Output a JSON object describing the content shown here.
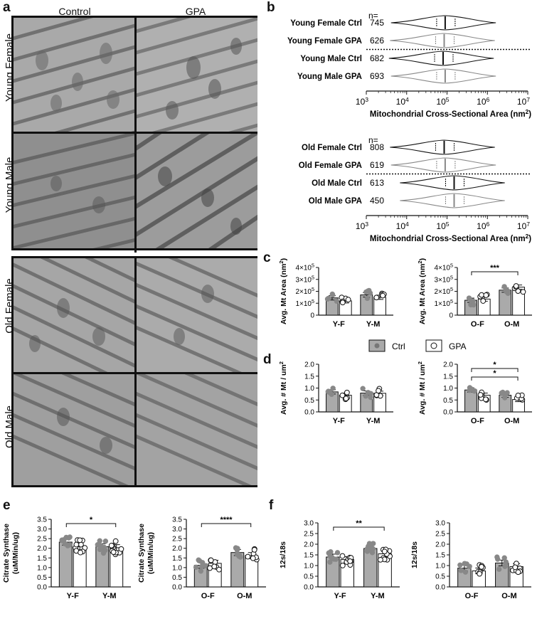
{
  "panel_labels": {
    "a": "a",
    "b": "b",
    "c": "c",
    "d": "d",
    "e": "e",
    "f": "f"
  },
  "panel_a": {
    "columns": [
      "Control",
      "GPA"
    ],
    "rows": [
      "Young Female",
      "Young Male",
      "Old Female",
      "Old Male"
    ]
  },
  "legend": {
    "ctrl": "Ctrl",
    "gpa": "GPA"
  },
  "chart_data": [
    {
      "id": "b-young",
      "type": "violin",
      "n_label": "n=",
      "rows": [
        {
          "label": "Young Female Ctrl",
          "n": "745",
          "color": "#111111"
        },
        {
          "label": "Young Female GPA",
          "n": "626",
          "color": "#888888"
        },
        {
          "label": "Young Male Ctrl",
          "n": "682",
          "color": "#111111"
        },
        {
          "label": "Young Male GPA",
          "n": "693",
          "color": "#888888"
        }
      ],
      "xscale": "log",
      "xlim": [
        1000,
        10000000
      ],
      "ticks": [
        {
          "base": "10",
          "exp": "3"
        },
        {
          "base": "10",
          "exp": "4"
        },
        {
          "base": "10",
          "exp": "5"
        },
        {
          "base": "10",
          "exp": "6"
        },
        {
          "base": "10",
          "exp": "7"
        }
      ],
      "xlabel": "Mitochondrial Cross-Sectional Area (nm",
      "xlabel_sup": "2",
      "xlabel_end": ")"
    },
    {
      "id": "b-old",
      "type": "violin",
      "n_label": "n=",
      "rows": [
        {
          "label": "Old Female Ctrl",
          "n": "808",
          "color": "#111111"
        },
        {
          "label": "Old Female GPA",
          "n": "619",
          "color": "#888888"
        },
        {
          "label": "Old Male Ctrl",
          "n": "613",
          "color": "#111111"
        },
        {
          "label": "Old Male GPA",
          "n": "450",
          "color": "#888888"
        }
      ],
      "xscale": "log",
      "xlim": [
        1000,
        10000000
      ],
      "ticks": [
        {
          "base": "10",
          "exp": "3"
        },
        {
          "base": "10",
          "exp": "4"
        },
        {
          "base": "10",
          "exp": "5"
        },
        {
          "base": "10",
          "exp": "6"
        },
        {
          "base": "10",
          "exp": "7"
        }
      ],
      "xlabel": "Mitochondrial Cross-Sectional Area (nm",
      "xlabel_sup": "2",
      "xlabel_end": ")"
    },
    {
      "id": "c-young",
      "type": "bar",
      "ylabel": "Avg. Mt Area (nm",
      "ylabel_sup": "2",
      "ylabel_end": ")",
      "ylim": [
        0,
        400000
      ],
      "yticks": [
        {
          "t": "0"
        },
        {
          "t": "1×10",
          "sup": "5"
        },
        {
          "t": "2×10",
          "sup": "5"
        },
        {
          "t": "3×10",
          "sup": "5"
        },
        {
          "t": "4×10",
          "sup": "5"
        }
      ],
      "categories": [
        "Y-F",
        "Y-M"
      ],
      "series": [
        {
          "name": "Ctrl",
          "values": [
            145000,
            170000
          ]
        },
        {
          "name": "GPA",
          "values": [
            120000,
            150000
          ]
        }
      ],
      "sig": []
    },
    {
      "id": "c-old",
      "type": "bar",
      "ylabel": "Avg. Mt Area (nm",
      "ylabel_sup": "2",
      "ylabel_end": ")",
      "ylim": [
        0,
        400000
      ],
      "yticks": [
        {
          "t": "0"
        },
        {
          "t": "1×10",
          "sup": "5"
        },
        {
          "t": "2×10",
          "sup": "5"
        },
        {
          "t": "3×10",
          "sup": "5"
        },
        {
          "t": "4×10",
          "sup": "5"
        }
      ],
      "categories": [
        "O-F",
        "O-M"
      ],
      "series": [
        {
          "name": "Ctrl",
          "values": [
            125000,
            210000
          ]
        },
        {
          "name": "GPA",
          "values": [
            135000,
            235000
          ]
        }
      ],
      "sig": [
        {
          "label": "***"
        }
      ]
    },
    {
      "id": "d-young",
      "type": "bar",
      "ylabel": "Avg. # Mt / um",
      "ylabel_sup": "2",
      "ylabel_end": "",
      "ylim": [
        0,
        2.0
      ],
      "yticks": [
        {
          "t": "0.0"
        },
        {
          "t": "0.5"
        },
        {
          "t": "1.0"
        },
        {
          "t": "1.5"
        },
        {
          "t": "2.0"
        }
      ],
      "categories": [
        "Y-F",
        "Y-M"
      ],
      "series": [
        {
          "name": "Ctrl",
          "values": [
            0.84,
            0.79
          ]
        },
        {
          "name": "GPA",
          "values": [
            0.7,
            0.78
          ]
        }
      ],
      "sig": []
    },
    {
      "id": "d-old",
      "type": "bar",
      "ylabel": "Avg. # Mt / um",
      "ylabel_sup": "2",
      "ylabel_end": "",
      "ylim": [
        0,
        2.0
      ],
      "yticks": [
        {
          "t": "0.0"
        },
        {
          "t": "0.5"
        },
        {
          "t": "1.0"
        },
        {
          "t": "1.5"
        },
        {
          "t": "2.0"
        }
      ],
      "categories": [
        "O-F",
        "O-M"
      ],
      "series": [
        {
          "name": "Ctrl",
          "values": [
            0.92,
            0.7
          ]
        },
        {
          "name": "GPA",
          "values": [
            0.7,
            0.52
          ]
        }
      ],
      "sig": [
        {
          "label": "*"
        },
        {
          "label": "*"
        }
      ]
    },
    {
      "id": "e-young",
      "type": "bar",
      "ylabel": "Citrate Synthase",
      "ylabel2": "(uM/Min/ug)",
      "ylim": [
        0,
        3.5
      ],
      "yticks": [
        {
          "t": "0.0"
        },
        {
          "t": "0.5"
        },
        {
          "t": "1.0"
        },
        {
          "t": "1.5"
        },
        {
          "t": "2.0"
        },
        {
          "t": "2.5"
        },
        {
          "t": "3.0"
        },
        {
          "t": "3.5"
        }
      ],
      "categories": [
        "Y-F",
        "Y-M"
      ],
      "series": [
        {
          "name": "Ctrl",
          "values": [
            2.32,
            2.08
          ]
        },
        {
          "name": "GPA",
          "values": [
            2.08,
            2.03
          ]
        }
      ],
      "sig": [
        {
          "label": "*"
        }
      ]
    },
    {
      "id": "e-old",
      "type": "bar",
      "ylabel": "Citrate Synthase",
      "ylabel2": "(uM/Min/ug)",
      "ylim": [
        0,
        3.5
      ],
      "yticks": [
        {
          "t": "0.0"
        },
        {
          "t": "0.5"
        },
        {
          "t": "1.0"
        },
        {
          "t": "1.5"
        },
        {
          "t": "2.0"
        },
        {
          "t": "2.5"
        },
        {
          "t": "3.0"
        },
        {
          "t": "3.5"
        }
      ],
      "categories": [
        "O-F",
        "O-M"
      ],
      "series": [
        {
          "name": "Ctrl",
          "values": [
            1.12,
            1.78
          ]
        },
        {
          "name": "GPA",
          "values": [
            1.22,
            1.62
          ]
        }
      ],
      "sig": [
        {
          "label": "****"
        }
      ]
    },
    {
      "id": "f-young",
      "type": "bar",
      "ylabel": "12s/18s",
      "ylim": [
        0,
        3.0
      ],
      "yticks": [
        {
          "t": "0.0"
        },
        {
          "t": "0.5"
        },
        {
          "t": "1.0"
        },
        {
          "t": "1.5"
        },
        {
          "t": "2.0"
        },
        {
          "t": "2.5"
        },
        {
          "t": "3.0"
        }
      ],
      "categories": [
        "Y-F",
        "Y-M"
      ],
      "series": [
        {
          "name": "Ctrl",
          "values": [
            1.4,
            1.8
          ]
        },
        {
          "name": "GPA",
          "values": [
            1.28,
            1.55
          ]
        }
      ],
      "sig": [
        {
          "label": "**"
        }
      ]
    },
    {
      "id": "f-old",
      "type": "bar",
      "ylabel": "12s/18s",
      "ylim": [
        0,
        3.0
      ],
      "yticks": [
        {
          "t": "0.0"
        },
        {
          "t": "0.5"
        },
        {
          "t": "1.0"
        },
        {
          "t": "1.5"
        },
        {
          "t": "2.0"
        },
        {
          "t": "2.5"
        },
        {
          "t": "3.0"
        }
      ],
      "categories": [
        "O-F",
        "O-M"
      ],
      "series": [
        {
          "name": "Ctrl",
          "values": [
            0.88,
            1.12
          ]
        },
        {
          "name": "GPA",
          "values": [
            0.75,
            0.95
          ]
        }
      ],
      "sig": []
    }
  ]
}
